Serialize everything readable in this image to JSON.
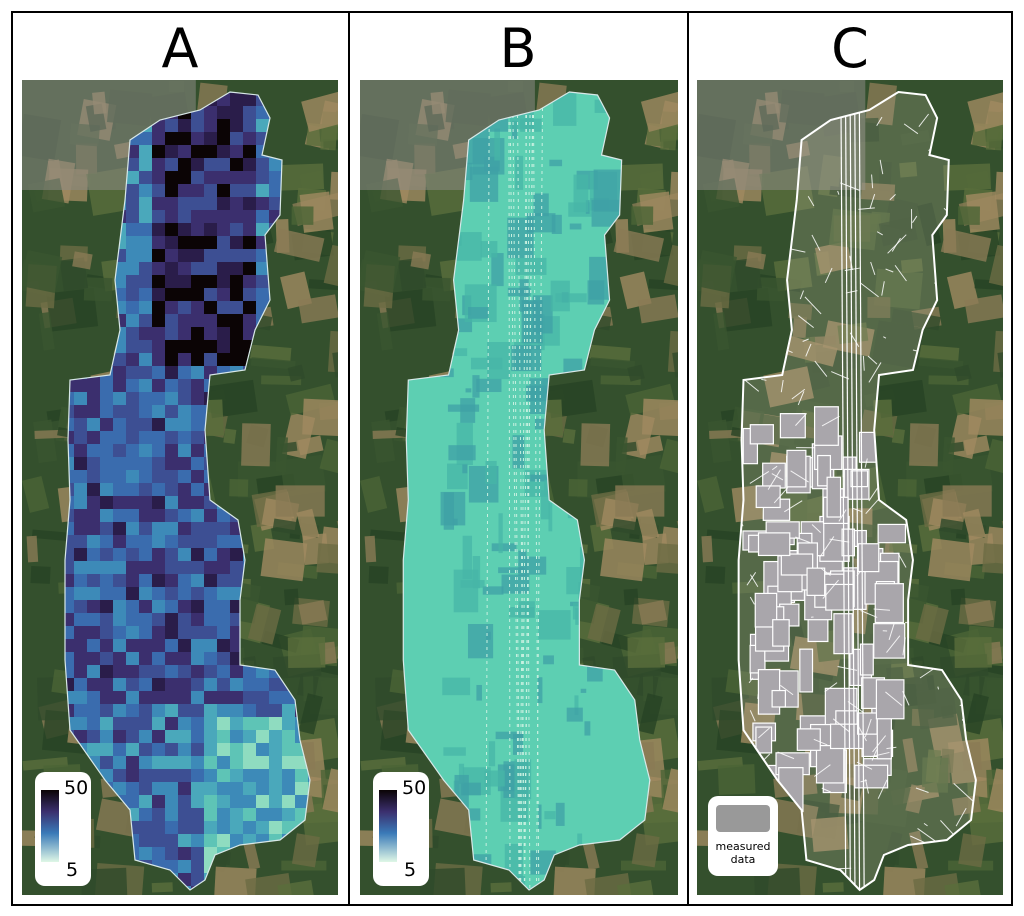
{
  "panels": [
    {
      "label": "A",
      "legend": {
        "max": 50,
        "min": 5
      }
    },
    {
      "label": "B",
      "legend": {
        "max": 50,
        "min": 5
      }
    },
    {
      "label": "C",
      "legend": {
        "label": "measured data"
      }
    }
  ]
}
